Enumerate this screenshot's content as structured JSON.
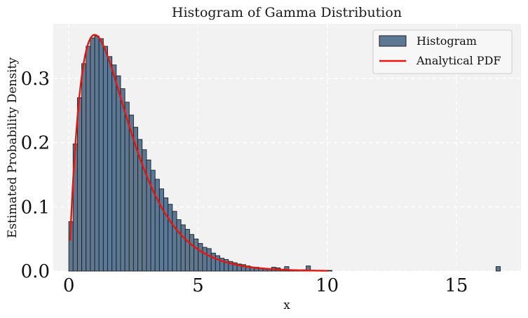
{
  "chart_data": {
    "type": "bar",
    "title": "Histogram of Gamma Distribution",
    "xlabel": "x",
    "ylabel": "Estimated Probability Density",
    "xlim": [
      -0.6,
      17.5
    ],
    "ylim": [
      0,
      0.385
    ],
    "xticks": [
      0,
      5,
      10,
      15
    ],
    "yticks": [
      0.0,
      0.1,
      0.2,
      0.3
    ],
    "ytick_labels": [
      "0.0",
      "0.1",
      "0.2",
      "0.3"
    ],
    "grid": true,
    "legend_position": "top-right",
    "colors": {
      "histogram_fill": "#5c7894",
      "histogram_edge": "#1f1f1f",
      "pdf_line": "#e8140e",
      "plot_background": "#f2f2f2",
      "grid": "#ffffff"
    },
    "histogram": {
      "name": "Histogram",
      "bin_width": 0.167,
      "bin_starts": [
        0.0,
        0.167,
        0.334,
        0.501,
        0.668,
        0.835,
        1.002,
        1.169,
        1.336,
        1.503,
        1.67,
        1.837,
        2.004,
        2.171,
        2.338,
        2.505,
        2.672,
        2.839,
        3.006,
        3.173,
        3.34,
        3.507,
        3.674,
        3.841,
        4.008,
        4.175,
        4.342,
        4.509,
        4.676,
        4.843,
        5.01,
        5.177,
        5.344,
        5.511,
        5.678,
        5.845,
        6.012,
        6.179,
        6.346,
        6.513,
        6.68,
        6.847,
        7.014,
        7.181,
        7.348,
        7.515,
        7.682,
        7.849,
        8.016,
        8.183,
        8.35,
        8.517,
        8.684,
        8.851,
        9.018,
        9.185,
        9.352,
        9.519,
        9.686,
        9.853,
        10.02,
        16.533
      ],
      "densities": [
        0.077,
        0.198,
        0.27,
        0.323,
        0.35,
        0.363,
        0.366,
        0.362,
        0.35,
        0.334,
        0.321,
        0.304,
        0.284,
        0.263,
        0.243,
        0.224,
        0.205,
        0.189,
        0.173,
        0.157,
        0.143,
        0.128,
        0.114,
        0.104,
        0.093,
        0.08,
        0.072,
        0.065,
        0.057,
        0.05,
        0.043,
        0.037,
        0.035,
        0.028,
        0.024,
        0.02,
        0.018,
        0.015,
        0.013,
        0.011,
        0.01,
        0.008,
        0.006,
        0.006,
        0.005,
        0.003,
        0.003,
        0.006,
        0.005,
        0.003,
        0.007,
        0.002,
        0.002,
        0.001,
        0.002,
        0.008,
        0.001,
        0.001,
        0.001,
        0.001,
        0.001,
        0.007
      ]
    },
    "pdf_line": {
      "name": "Analytical PDF",
      "shape_k": 2,
      "scale_theta": 1,
      "x_range": [
        0.05,
        10
      ]
    }
  }
}
